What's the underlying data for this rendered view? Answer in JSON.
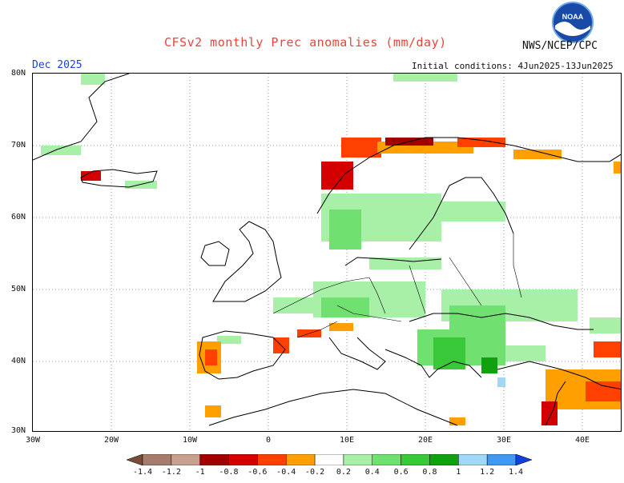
{
  "header": {
    "title": "CFSv2 monthly Prec anomalies (mm/day)",
    "agency": "NWS/NCEP/CPC",
    "logo_text": "NOAA",
    "valid_month": "Dec 2025",
    "initial_conditions": "Initial conditions: 4Jun2025-13Jun2025"
  },
  "axes": {
    "lat_labels": [
      "80N",
      "70N",
      "60N",
      "50N",
      "40N",
      "30N"
    ],
    "lon_labels": [
      "30W",
      "20W",
      "10W",
      "0",
      "10E",
      "20E",
      "30E",
      "40E"
    ]
  },
  "colorbar": {
    "labels": [
      "-1.4",
      "-1.2",
      "-1",
      "-0.8",
      "-0.6",
      "-0.4",
      "-0.2",
      "0.2",
      "0.4",
      "0.6",
      "0.8",
      "1",
      "1.2",
      "1.4"
    ],
    "colors": [
      "#7a4a3a",
      "#a87c6c",
      "#c8a090",
      "#a00000",
      "#d40000",
      "#ff4000",
      "#ffa000",
      "#ffffff",
      "#a8f0a8",
      "#70e070",
      "#38c838",
      "#10a010",
      "#a0d8f8",
      "#4098f0",
      "#1040e0"
    ]
  }
}
